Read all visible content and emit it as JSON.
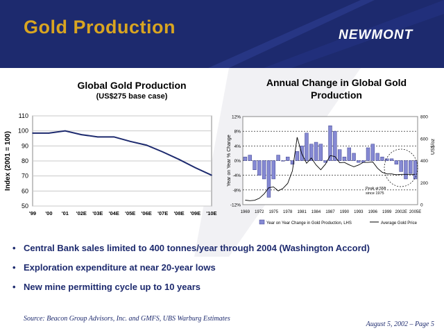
{
  "slide": {
    "title": "Gold Production",
    "logo_text": "NEWMONT",
    "bullets": [
      "Central Bank sales limited to 400 tonnes/year through 2004 (Washington Accord)",
      "Exploration expenditure at near 20-year lows",
      "New mine permitting cycle up to 10 years"
    ],
    "source": "Source: Beacon Group Advisors, Inc. and GMFS, UBS Warburg Estimates",
    "footer": "August 5, 2002 – Page 5",
    "colors": {
      "header": "#1d2a6e",
      "title": "#d9a521",
      "bar": "#8589d3",
      "line": "#1d2a6e"
    }
  },
  "chart_data": [
    {
      "type": "line",
      "title": "Global Gold Production",
      "subtitle": "(US$275 base case)",
      "xlabel": "",
      "ylabel": "Index (2001 = 100)",
      "categories": [
        "'99",
        "'00",
        "'01",
        "'02E",
        "'03E",
        "'04E",
        "'05E",
        "'06E",
        "'07E",
        "'08E",
        "'09E",
        "'10E"
      ],
      "values": [
        98.5,
        98.5,
        100,
        97.5,
        96,
        96,
        93,
        90.5,
        86,
        81,
        75.5,
        70.5
      ],
      "ylim": [
        50,
        110
      ],
      "yticks": [
        50,
        60,
        70,
        80,
        90,
        100,
        110
      ],
      "grid": true
    },
    {
      "type": "bar",
      "title": "Annual Change in Global Gold Production",
      "ylabel": "Year on Year % Change",
      "y2label": "US$/oz",
      "ylim": [
        -12,
        12
      ],
      "y2lim": [
        0,
        800
      ],
      "yticks": [
        "12%",
        "8%",
        "4%",
        "0%",
        "-4%",
        "-8%",
        "-12%"
      ],
      "y2ticks": [
        "800",
        "600",
        "400",
        "200",
        "0"
      ],
      "xticks": [
        "1969",
        "1972",
        "1975",
        "1978",
        "1981",
        "1984",
        "1987",
        "1990",
        "1993",
        "1996",
        "1999",
        "2002E",
        "2005E"
      ],
      "series": [
        {
          "name": "Year on Year Change in Gold Production, LHS",
          "type": "bar",
          "values": [
            1,
            1.5,
            -2.5,
            -4,
            -5,
            -10,
            -5,
            1.5,
            0,
            1,
            -1,
            2.5,
            4,
            7.5,
            4.5,
            5,
            4.5,
            -0.5,
            9.5,
            8,
            3,
            1,
            3.5,
            2,
            -0.5,
            -0.5,
            3.5,
            4.5,
            2,
            1,
            0.5,
            0.5,
            -1,
            -3,
            -5,
            -3.5,
            -5
          ]
        },
        {
          "name": "Average Gold Price",
          "type": "line",
          "values": [
            41,
            36,
            40,
            58,
            97,
            154,
            161,
            125,
            148,
            193,
            307,
            612,
            460,
            376,
            424,
            361,
            317,
            368,
            446,
            437,
            381,
            384,
            362,
            344,
            360,
            384,
            384,
            388,
            331,
            294,
            279,
            279,
            271,
            275,
            275,
            275,
            275
          ]
        }
      ],
      "annotation": "Peak at 5Mt since 1975"
    }
  ]
}
